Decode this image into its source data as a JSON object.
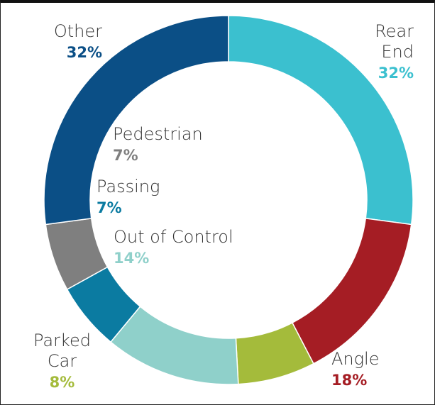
{
  "chart_data": {
    "type": "pie",
    "categories": [
      "Rear End",
      "Angle",
      "Parked Car",
      "Out of Control",
      "Passing",
      "Pedestrian",
      "Other"
    ],
    "values": [
      32,
      18,
      8,
      14,
      7,
      7,
      32
    ],
    "value_labels": [
      "32%",
      "18%",
      "8%",
      "14%",
      "7%",
      "7%",
      "32%"
    ],
    "colors": [
      "#3bc0cf",
      "#a51d24",
      "#a4bb3b",
      "#8fd0ca",
      "#0b7ba1",
      "#7f7f7f",
      "#0b4f86"
    ]
  }
}
